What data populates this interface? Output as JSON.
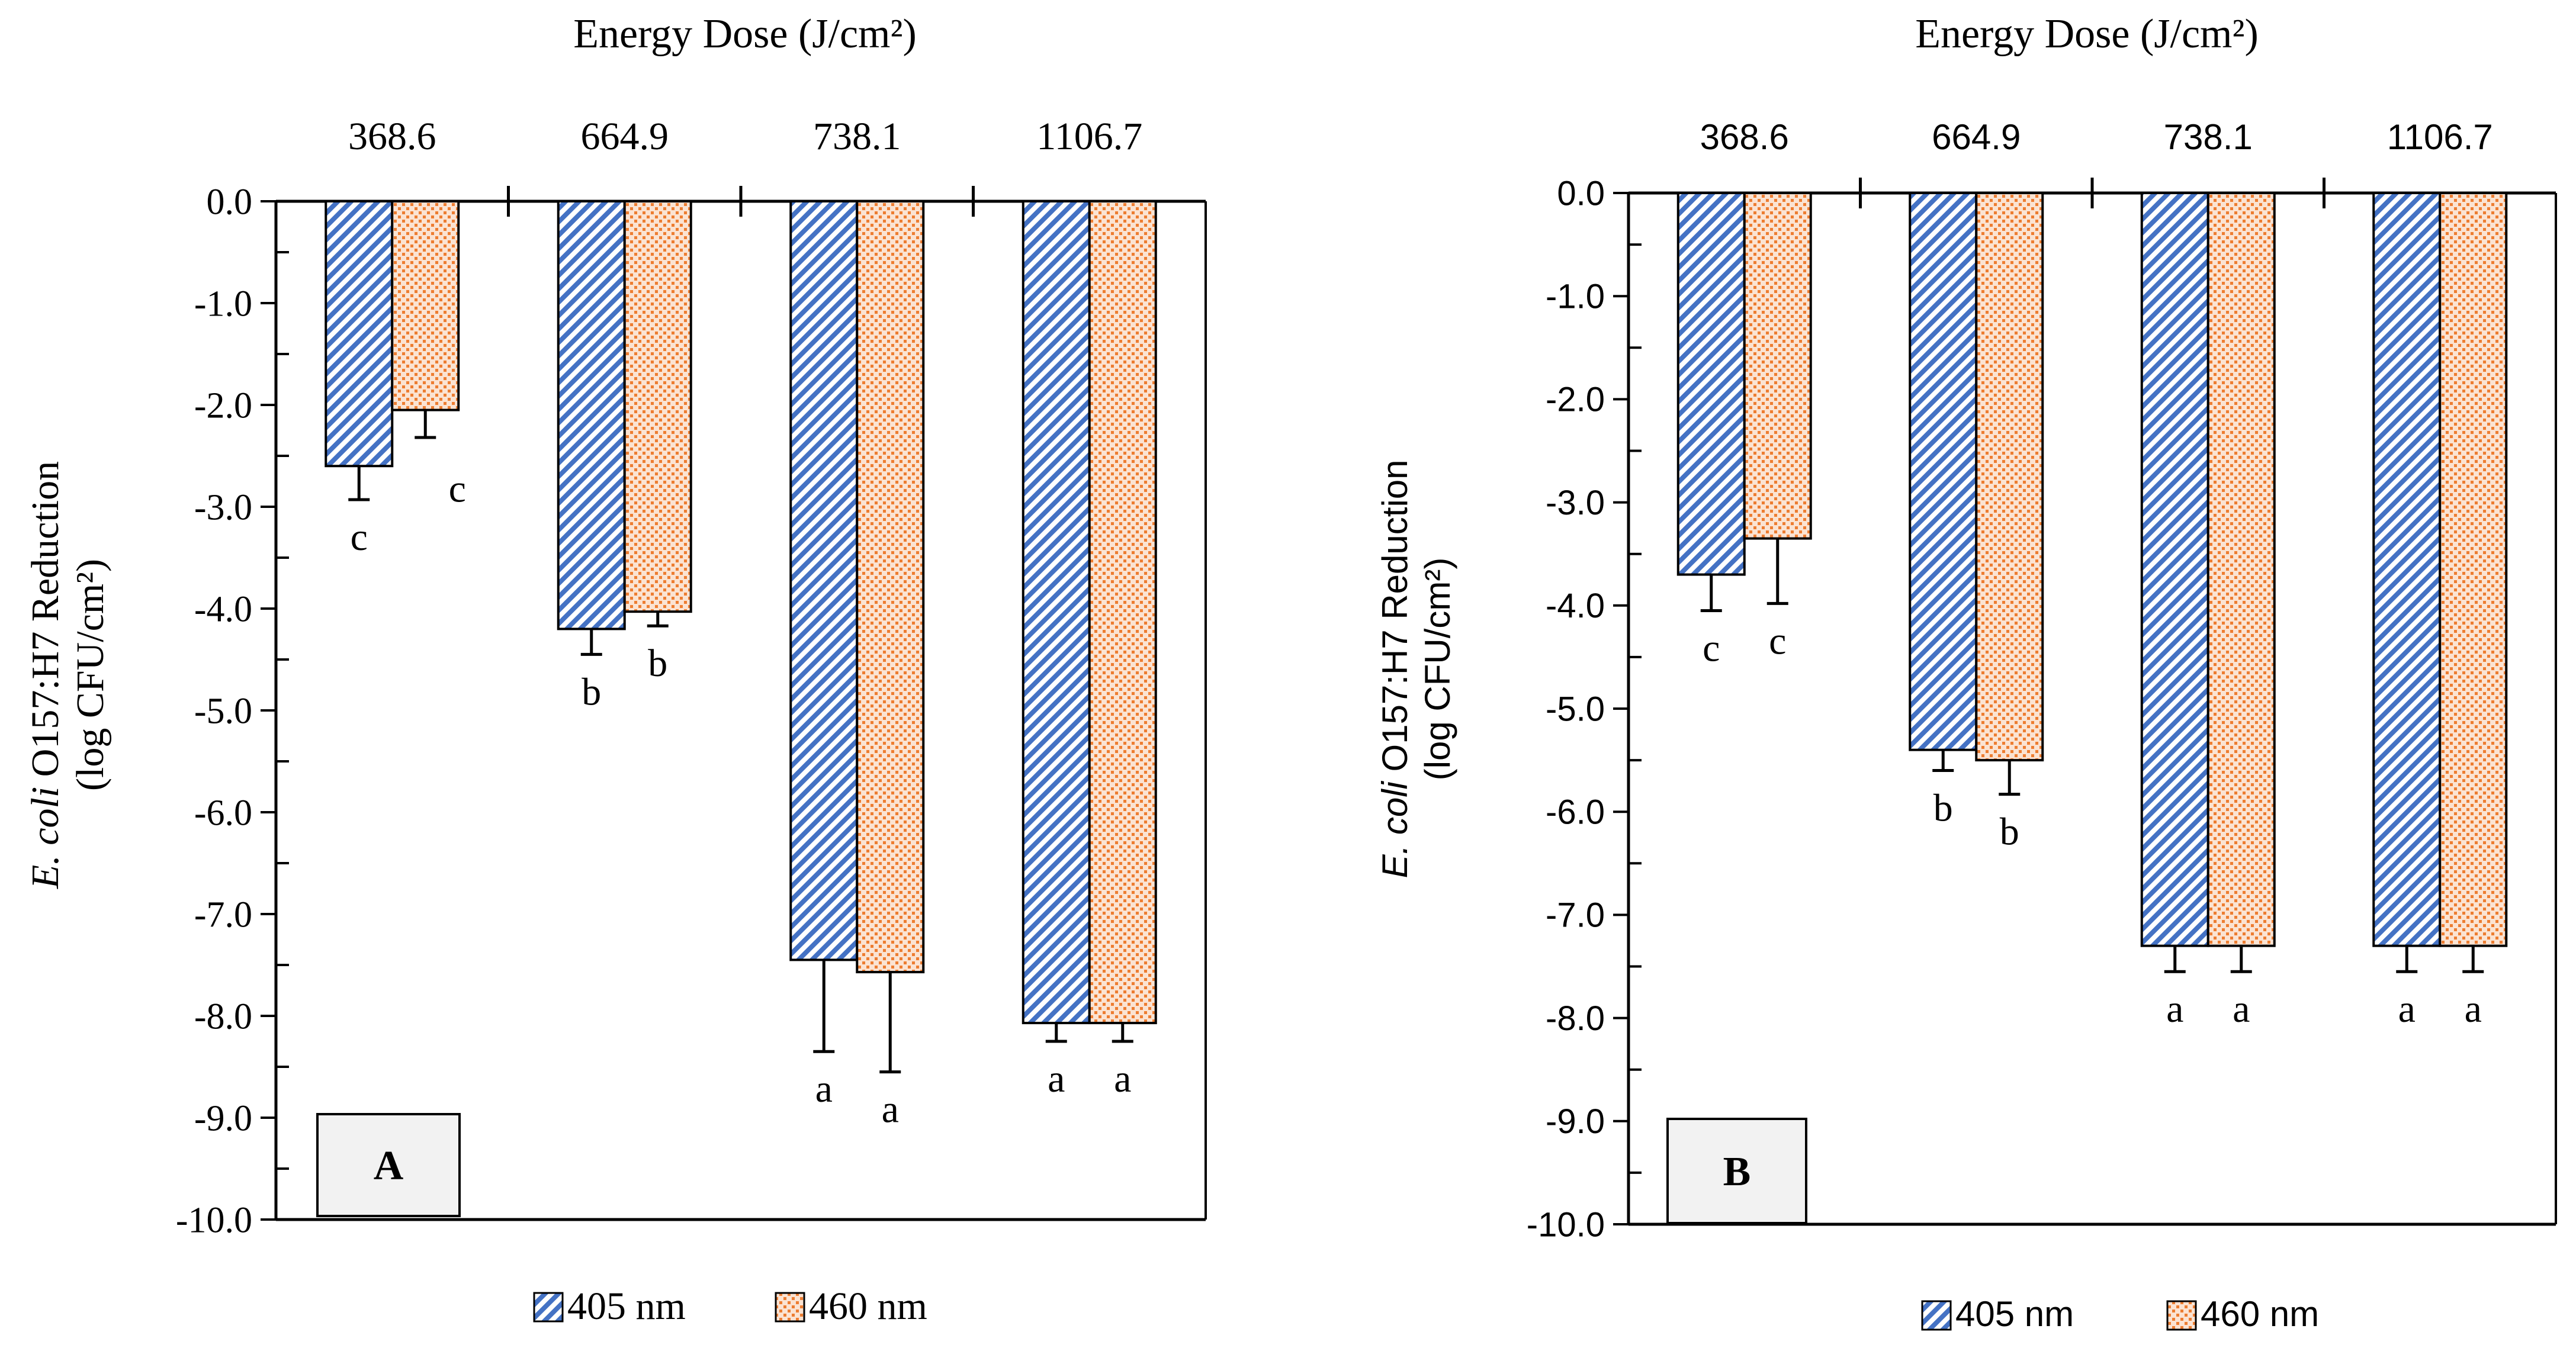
{
  "colors": {
    "bar405": "#4472c4",
    "bar460": "#ed7d31",
    "stroke": "#000000",
    "panelLabelFill": "#f2f2f2"
  },
  "chart_data": [
    {
      "type": "bar",
      "panel_label": "A",
      "title": "Energy Dose (J/cm²)",
      "xlabel": "Energy Dose (J/cm²)",
      "ylabel_italic": "E. coli",
      "ylabel_rest": " O157:H7 Reduction",
      "ylabel_line2": "(log CFU/cm²)",
      "categories": [
        "368.6",
        "664.9",
        "738.1",
        "1106.7"
      ],
      "ylim": [
        -10,
        0
      ],
      "yticks": [
        "0.0",
        "-1.0",
        "-2.0",
        "-3.0",
        "-4.0",
        "-5.0",
        "-6.0",
        "-7.0",
        "-8.0",
        "-9.0",
        "-10.0"
      ],
      "series": [
        {
          "name": "405 nm",
          "values": [
            -2.6,
            -4.2,
            -7.45,
            -8.07
          ],
          "errors": [
            0.33,
            0.25,
            0.9,
            0.18
          ],
          "letters": [
            "c",
            "b",
            "a",
            "a"
          ]
        },
        {
          "name": "460 nm",
          "values": [
            -2.05,
            -4.03,
            -7.57,
            -8.07
          ],
          "errors": [
            0.27,
            0.14,
            0.98,
            0.18
          ],
          "letters": [
            "c",
            "b",
            "a",
            "a"
          ]
        }
      ],
      "legend": [
        "405 nm",
        "460 nm"
      ],
      "legend_position": "bottom"
    },
    {
      "type": "bar",
      "panel_label": "B",
      "title": "Energy Dose (J/cm²)",
      "xlabel": "Energy Dose (J/cm²)",
      "ylabel_italic": "E. coli",
      "ylabel_rest": " O157:H7 Reduction",
      "ylabel_line2": "(log CFU/cm²)",
      "categories": [
        "368.6",
        "664.9",
        "738.1",
        "1106.7"
      ],
      "ylim": [
        -10,
        0
      ],
      "yticks": [
        "0.0",
        "-1.0",
        "-2.0",
        "-3.0",
        "-4.0",
        "-5.0",
        "-6.0",
        "-7.0",
        "-8.0",
        "-9.0",
        "-10.0"
      ],
      "series": [
        {
          "name": "405 nm",
          "values": [
            -3.7,
            -5.4,
            -7.3,
            -7.3
          ],
          "errors": [
            0.35,
            0.2,
            0.25,
            0.25
          ],
          "letters": [
            "c",
            "b",
            "a",
            "a"
          ]
        },
        {
          "name": "460 nm",
          "values": [
            -3.35,
            -5.5,
            -7.3,
            -7.3
          ],
          "errors": [
            0.63,
            0.33,
            0.25,
            0.25
          ],
          "letters": [
            "c",
            "b",
            "a",
            "a"
          ]
        }
      ],
      "legend": [
        "405 nm",
        "460 nm"
      ],
      "legend_position": "bottom"
    }
  ]
}
